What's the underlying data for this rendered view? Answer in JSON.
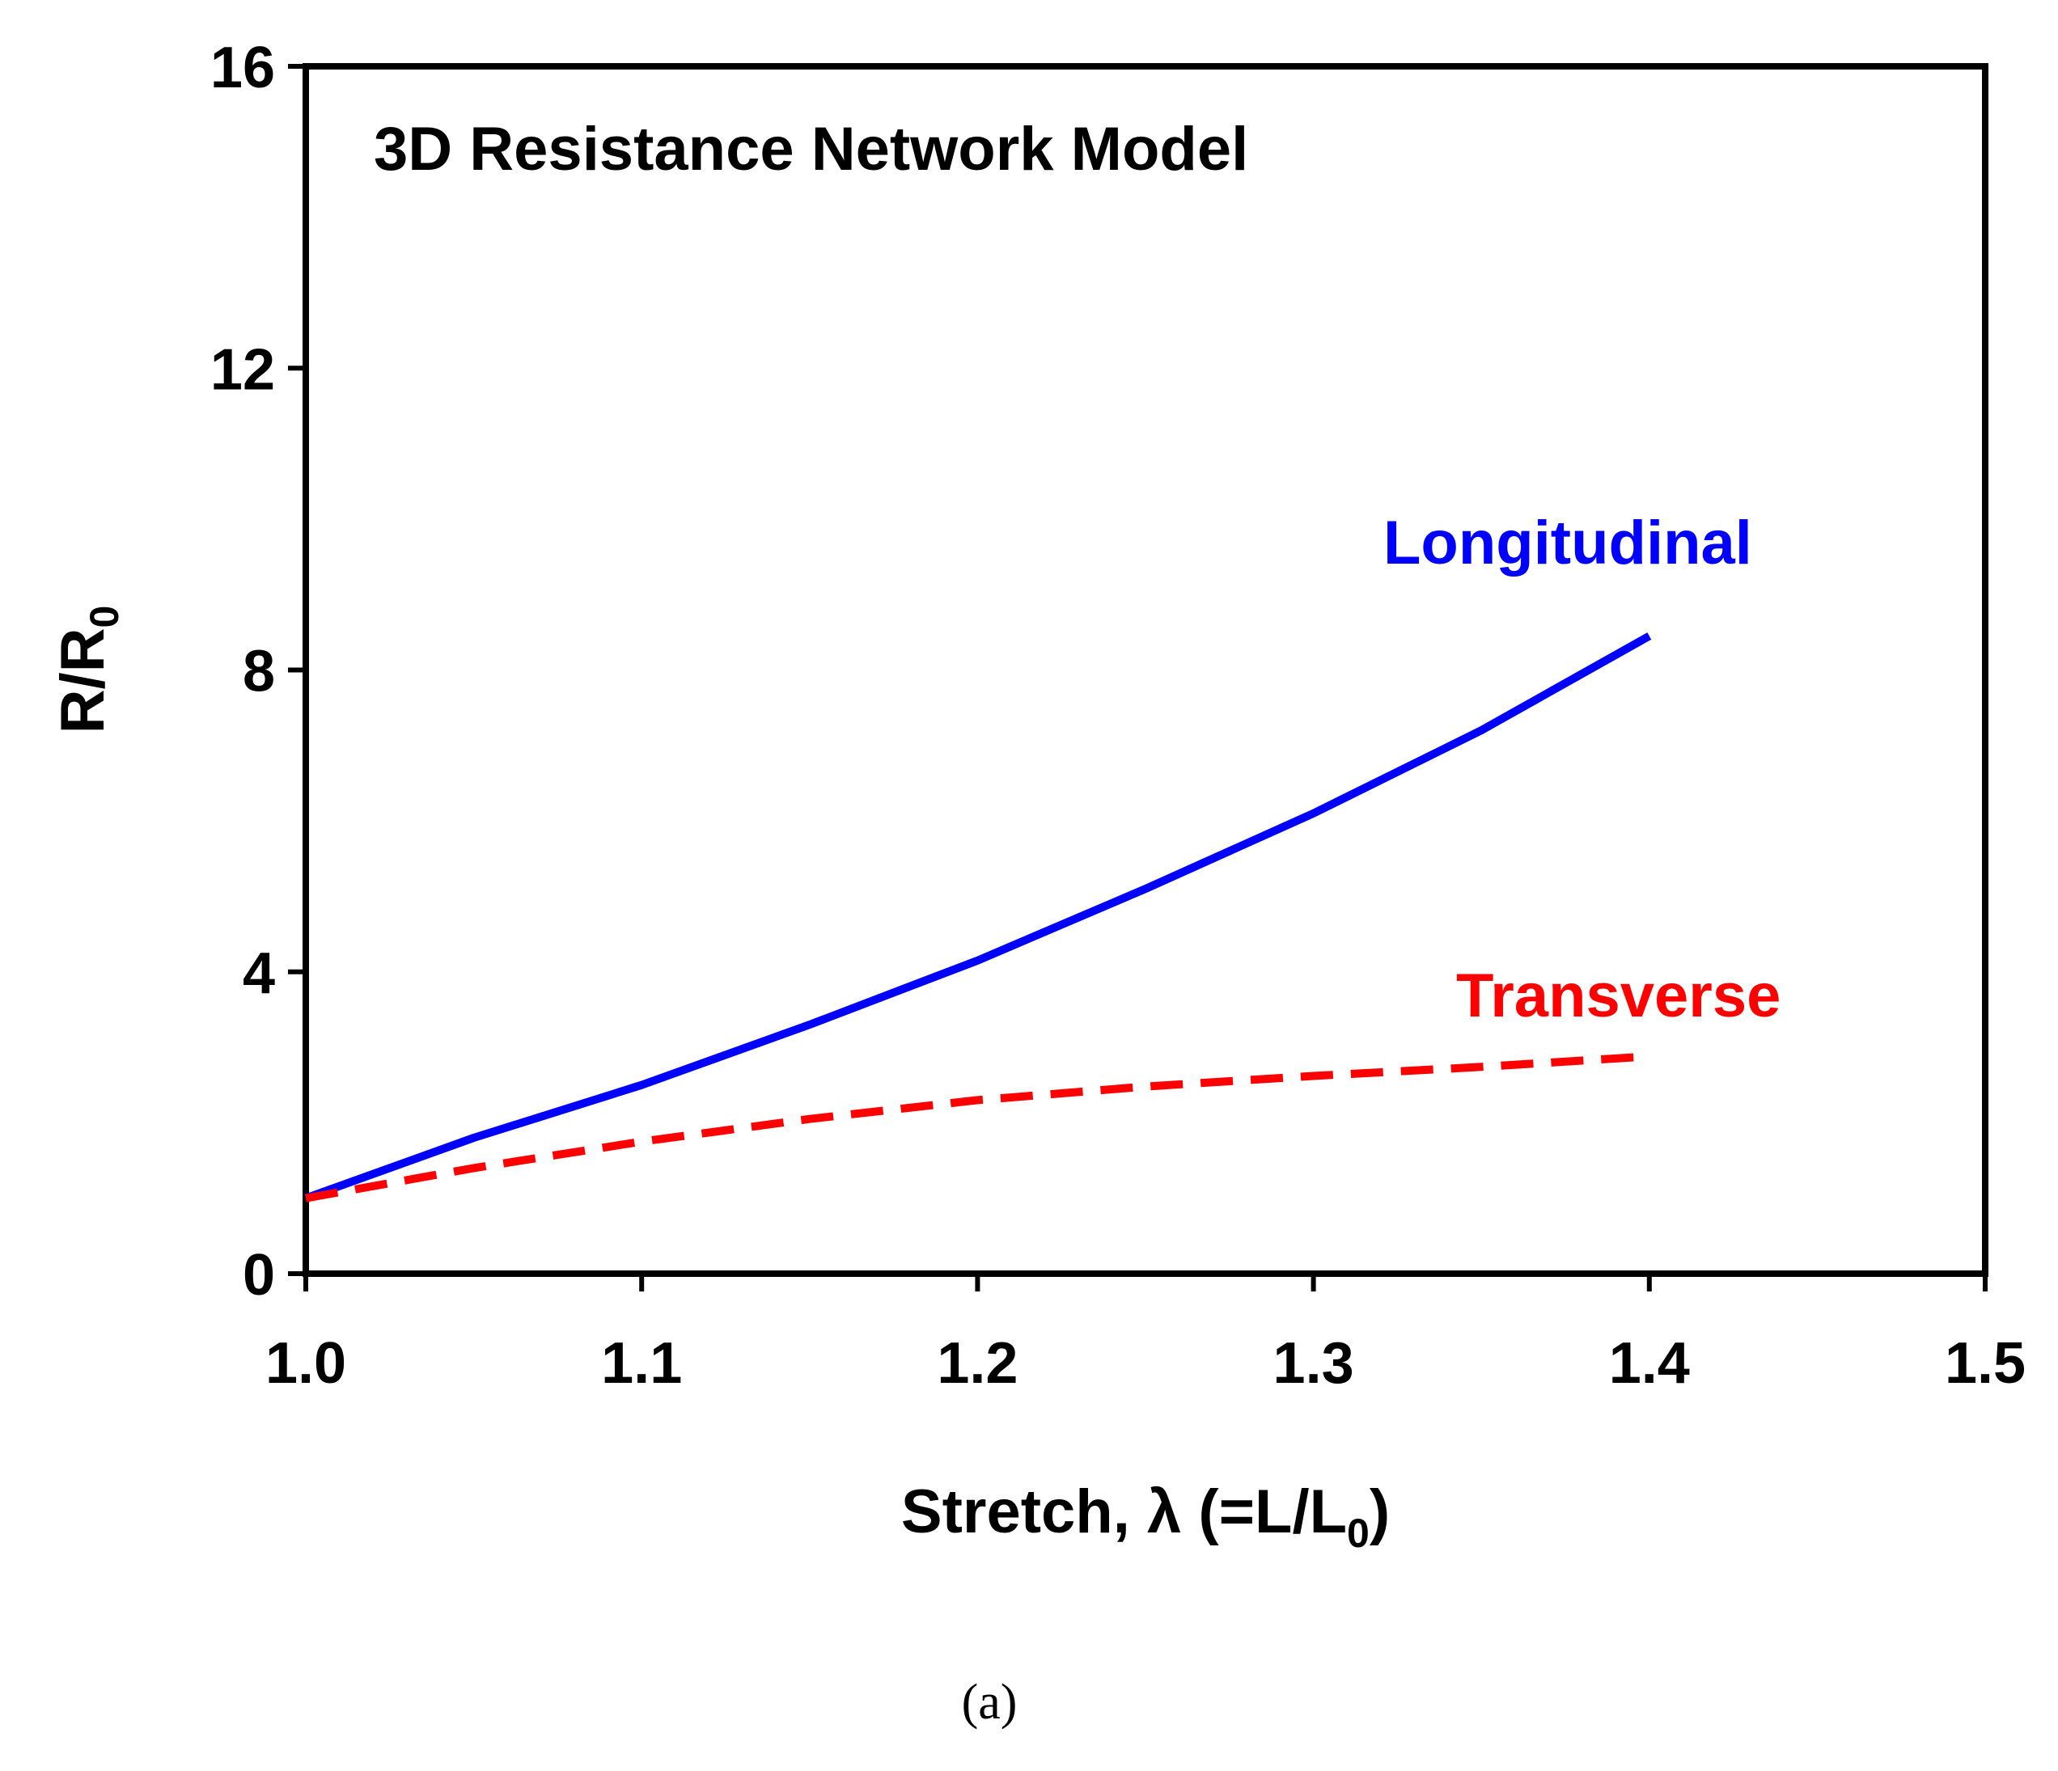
{
  "chart_data": {
    "type": "line",
    "title": "3D Resistance Network Model",
    "xlabel": "Stretch, λ (=L/L0)",
    "xlabel_parts": {
      "main": "Stretch, λ (=L/L",
      "sub": "0",
      "tail": ")"
    },
    "ylabel": "R/R0",
    "ylabel_parts": {
      "main": "R/R",
      "sub": "0"
    },
    "xlim": [
      1.0,
      1.5
    ],
    "ylim": [
      0,
      16
    ],
    "xticks": [
      "1.0",
      "1.1",
      "1.2",
      "1.3",
      "1.4",
      "1.5"
    ],
    "yticks": [
      "0",
      "4",
      "8",
      "12",
      "16"
    ],
    "grid": false,
    "caption": "(a)",
    "series": [
      {
        "name": "Longitudinal",
        "color": "#0000ff",
        "style": "solid",
        "x": [
          1.0,
          1.05,
          1.1,
          1.15,
          1.2,
          1.25,
          1.3,
          1.35,
          1.4
        ],
        "y": [
          1.0,
          1.8,
          2.5,
          3.3,
          4.15,
          5.1,
          6.1,
          7.2,
          8.45
        ]
      },
      {
        "name": "Transverse",
        "color": "#ff0000",
        "style": "dashed",
        "x": [
          1.0,
          1.05,
          1.1,
          1.15,
          1.2,
          1.25,
          1.3,
          1.35,
          1.4
        ],
        "y": [
          1.0,
          1.4,
          1.75,
          2.05,
          2.3,
          2.48,
          2.62,
          2.74,
          2.88
        ]
      }
    ]
  }
}
